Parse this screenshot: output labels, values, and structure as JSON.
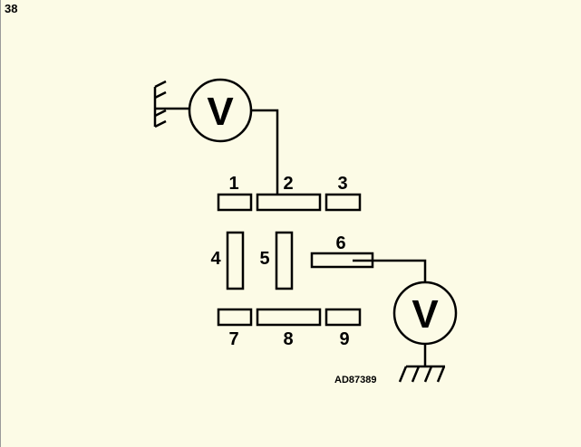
{
  "page_number": "38",
  "meter_top": {
    "symbol": "V"
  },
  "meter_bottom": {
    "symbol": "V"
  },
  "terminals": [
    "1",
    "2",
    "3",
    "4",
    "5",
    "6",
    "7",
    "8",
    "9"
  ],
  "reference_code": "AD87389"
}
